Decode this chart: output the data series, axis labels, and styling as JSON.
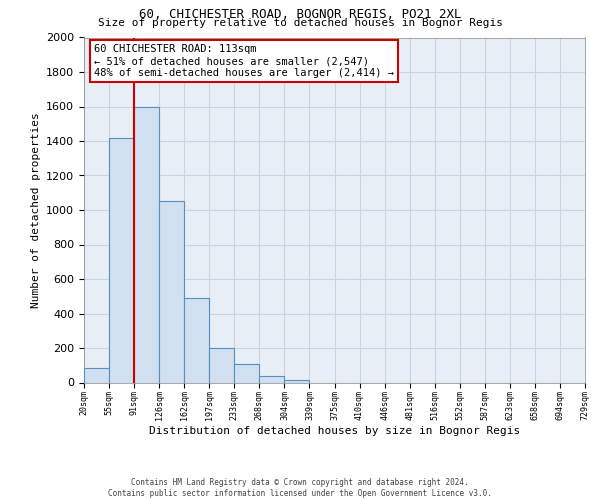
{
  "title": "60, CHICHESTER ROAD, BOGNOR REGIS, PO21 2XL",
  "subtitle": "Size of property relative to detached houses in Bognor Regis",
  "xlabel": "Distribution of detached houses by size in Bognor Regis",
  "ylabel": "Number of detached properties",
  "bar_fill_color": "#d0e0f0",
  "bar_edge_color": "#5590c0",
  "tick_labels": [
    "20sqm",
    "55sqm",
    "91sqm",
    "126sqm",
    "162sqm",
    "197sqm",
    "233sqm",
    "268sqm",
    "304sqm",
    "339sqm",
    "375sqm",
    "410sqm",
    "446sqm",
    "481sqm",
    "516sqm",
    "552sqm",
    "587sqm",
    "623sqm",
    "658sqm",
    "694sqm",
    "729sqm"
  ],
  "bar_heights": [
    85,
    1415,
    1600,
    1050,
    490,
    200,
    105,
    35,
    15,
    0,
    0,
    0,
    0,
    0,
    0,
    0,
    0,
    0,
    0,
    0
  ],
  "ylim": [
    0,
    2000
  ],
  "yticks": [
    0,
    200,
    400,
    600,
    800,
    1000,
    1200,
    1400,
    1600,
    1800,
    2000
  ],
  "vline_x": 2,
  "vline_color": "#cc0000",
  "annotation_line1": "60 CHICHESTER ROAD: 113sqm",
  "annotation_line2": "← 51% of detached houses are smaller (2,547)",
  "annotation_line3": "48% of semi-detached houses are larger (2,414) →",
  "footer_line1": "Contains HM Land Registry data © Crown copyright and database right 2024.",
  "footer_line2": "Contains public sector information licensed under the Open Government Licence v3.0.",
  "background_color": "#ffffff",
  "plot_bg_color": "#e8eef5",
  "grid_color": "#c8d4e0"
}
